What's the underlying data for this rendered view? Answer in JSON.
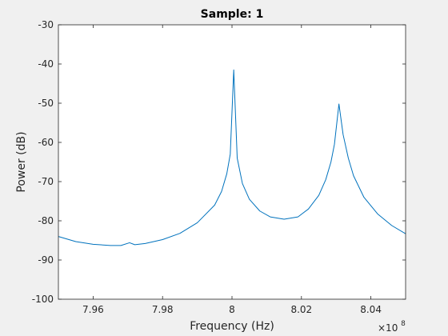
{
  "colors": {
    "figure_bg": "#f0f0f0",
    "axes_bg": "#ffffff",
    "axis": "#262626",
    "line": "#0072bd"
  },
  "chart_data": {
    "type": "line",
    "title": "Sample: 1",
    "xlabel": "Frequency (Hz)",
    "ylabel": "Power (dB)",
    "x_exponent": {
      "prefix": "×10",
      "power": "8"
    },
    "xlim": [
      7.95,
      8.05
    ],
    "ylim": [
      -100,
      -30
    ],
    "xticks": [
      {
        "value": 7.96,
        "label": "7.96"
      },
      {
        "value": 7.98,
        "label": "7.98"
      },
      {
        "value": 8.0,
        "label": "8"
      },
      {
        "value": 8.02,
        "label": "8.02"
      },
      {
        "value": 8.04,
        "label": "8.04"
      }
    ],
    "yticks": [
      {
        "value": -100,
        "label": "-100"
      },
      {
        "value": -90,
        "label": "-90"
      },
      {
        "value": -80,
        "label": "-80"
      },
      {
        "value": -70,
        "label": "-70"
      },
      {
        "value": -60,
        "label": "-60"
      },
      {
        "value": -50,
        "label": "-50"
      },
      {
        "value": -40,
        "label": "-40"
      },
      {
        "value": -30,
        "label": "-30"
      }
    ],
    "grid": false,
    "series": [
      {
        "x": [
          7.95,
          7.955,
          7.96,
          7.965,
          7.968,
          7.9705,
          7.972,
          7.975,
          7.98,
          7.985,
          7.99,
          7.995,
          7.997,
          7.9985,
          7.9995,
          8.0005,
          8.0015,
          8.003,
          8.005,
          8.008,
          8.011,
          8.015,
          8.019,
          8.022,
          8.025,
          8.027,
          8.0285,
          8.0295,
          8.0308,
          8.032,
          8.0335,
          8.035,
          8.038,
          8.042,
          8.046,
          8.05
        ],
        "y": [
          -84.0,
          -85.3,
          -86.0,
          -86.3,
          -86.3,
          -85.6,
          -86.1,
          -85.8,
          -84.8,
          -83.2,
          -80.5,
          -76.0,
          -72.5,
          -68.0,
          -63.0,
          -41.5,
          -64.0,
          -70.5,
          -74.5,
          -77.5,
          -79.0,
          -79.6,
          -79.0,
          -77.0,
          -73.5,
          -69.5,
          -65.0,
          -60.5,
          -50.2,
          -58.0,
          -64.0,
          -68.5,
          -74.0,
          -78.3,
          -81.2,
          -83.3
        ]
      }
    ]
  }
}
